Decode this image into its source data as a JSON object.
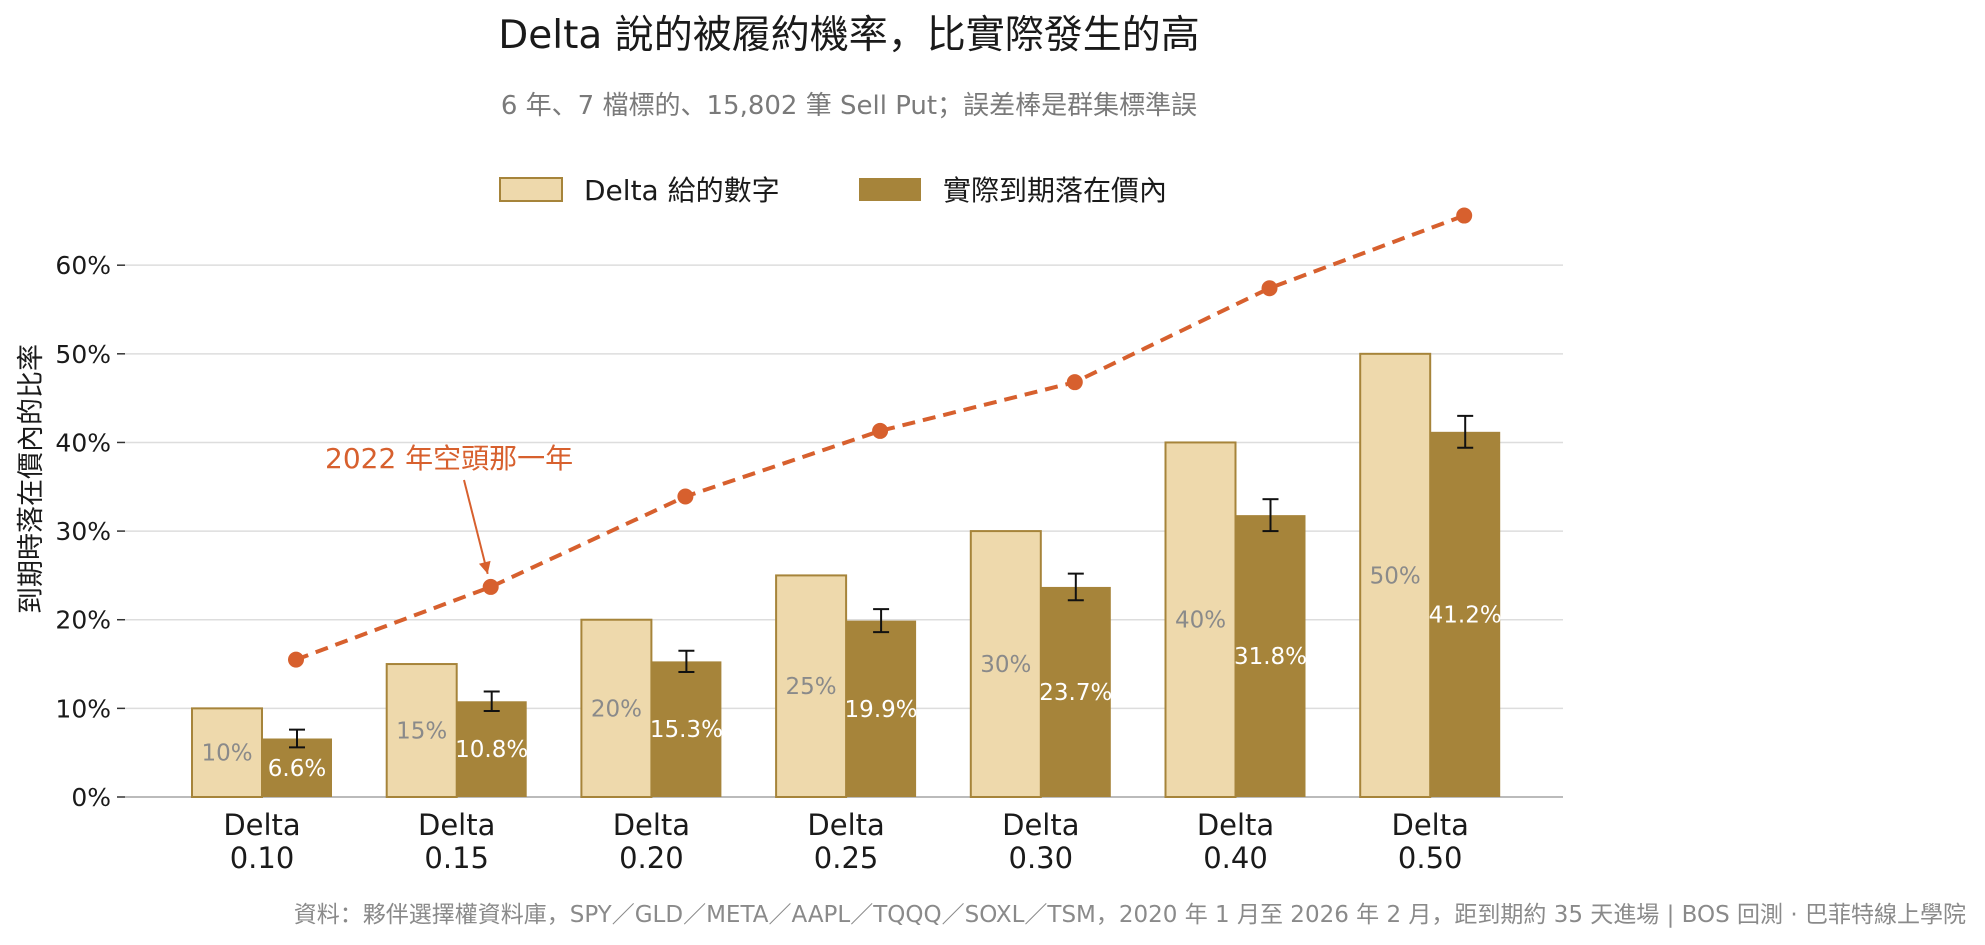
{
  "colors": {
    "delta_bar": "#eed9ac",
    "delta_bar_edge": "#a6843a",
    "actual_bar": "#a6843a",
    "line_2022": "#d7602e",
    "grid": "#dddddd",
    "axis": "#bbbbbb",
    "error_bar": "#111111"
  },
  "chart_data": {
    "type": "bar",
    "title": "Delta 說的被履約機率，比實際發生的高",
    "subtitle": "6 年、7 檔標的、15,802 筆 Sell Put；誤差棒是群集標準誤",
    "ylabel": "到期時落在價內的比率",
    "xlabel": "",
    "categories": [
      [
        "Delta",
        "0.10"
      ],
      [
        "Delta",
        "0.15"
      ],
      [
        "Delta",
        "0.20"
      ],
      [
        "Delta",
        "0.25"
      ],
      [
        "Delta",
        "0.30"
      ],
      [
        "Delta",
        "0.40"
      ],
      [
        "Delta",
        "0.50"
      ]
    ],
    "ylim": [
      0,
      0.66
    ],
    "yticks": [
      0,
      0.1,
      0.2,
      0.3,
      0.4,
      0.5,
      0.6
    ],
    "ytick_labels": [
      "0%",
      "10%",
      "20%",
      "30%",
      "40%",
      "50%",
      "60%"
    ],
    "grid": true,
    "legend_position": "top-center",
    "series": [
      {
        "name": "Delta 給的數字",
        "values": [
          0.1,
          0.15,
          0.2,
          0.25,
          0.3,
          0.4,
          0.5
        ],
        "labels": [
          "10%",
          "15%",
          "20%",
          "25%",
          "30%",
          "40%",
          "50%"
        ]
      },
      {
        "name": "實際到期落在價內",
        "values": [
          0.066,
          0.108,
          0.153,
          0.199,
          0.237,
          0.318,
          0.412
        ],
        "errors": [
          0.01,
          0.011,
          0.012,
          0.013,
          0.015,
          0.018,
          0.018
        ],
        "labels": [
          "6.6%",
          "10.8%",
          "15.3%",
          "19.9%",
          "23.7%",
          "31.8%",
          "41.2%"
        ]
      }
    ],
    "line_2022": {
      "values": [
        0.155,
        0.237,
        0.339,
        0.413,
        0.468,
        0.574,
        0.656
      ]
    },
    "annotation": {
      "text": "2022 年空頭那一年",
      "points_to_category": 1
    },
    "source": "資料：夥伴選擇權資料庫，SPY／GLD／META／AAPL／TQQQ／SOXL／TSM，2020 年 1 月至 2026 年 2 月，距到期約 35 天進場 | BOS 回測 · 巴菲特線上學院"
  }
}
